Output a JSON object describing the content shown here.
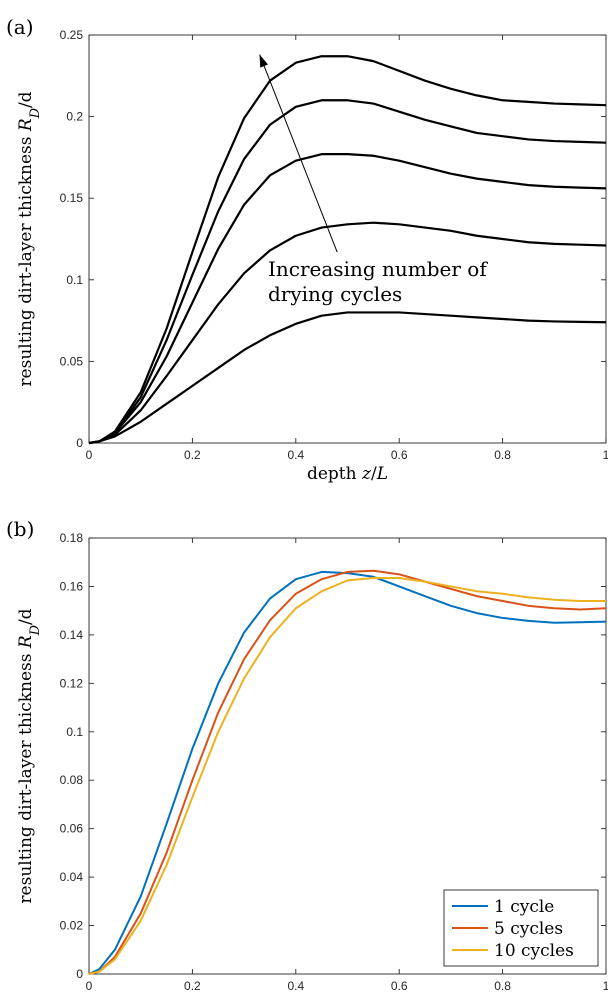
{
  "chart_data": [
    {
      "type": "line",
      "panel_label": "(a)",
      "xlabel": "depth z/L",
      "ylabel": "resulting dirt-layer thickness R_D/d",
      "xlim": [
        0,
        1
      ],
      "ylim": [
        0,
        0.25
      ],
      "xticks": [
        "0",
        "0.2",
        "0.4",
        "0.6",
        "0.8",
        "1"
      ],
      "yticks": [
        "0",
        "0.05",
        "0.1",
        "0.15",
        "0.2",
        "0.25"
      ],
      "grid": false,
      "annotation": {
        "lines": [
          "Increasing number of",
          "drying cycles"
        ],
        "arrow_from": [
          0.48,
          0.117
        ],
        "arrow_to": [
          0.33,
          0.238
        ]
      },
      "x": [
        0,
        0.02,
        0.05,
        0.1,
        0.15,
        0.2,
        0.25,
        0.3,
        0.35,
        0.4,
        0.45,
        0.5,
        0.55,
        0.6,
        0.65,
        0.7,
        0.75,
        0.8,
        0.85,
        0.9,
        0.95,
        1.0
      ],
      "series": [
        {
          "color": "#000000",
          "values": [
            0,
            0.001,
            0.004,
            0.013,
            0.024,
            0.035,
            0.046,
            0.057,
            0.066,
            0.073,
            0.078,
            0.08,
            0.08,
            0.08,
            0.079,
            0.078,
            0.077,
            0.076,
            0.075,
            0.0745,
            0.0742,
            0.074
          ]
        },
        {
          "color": "#000000",
          "values": [
            0,
            0.001,
            0.005,
            0.02,
            0.041,
            0.063,
            0.085,
            0.104,
            0.118,
            0.127,
            0.132,
            0.134,
            0.135,
            0.134,
            0.132,
            0.13,
            0.127,
            0.125,
            0.123,
            0.122,
            0.1215,
            0.121
          ]
        },
        {
          "color": "#000000",
          "values": [
            0,
            0.001,
            0.006,
            0.025,
            0.053,
            0.086,
            0.119,
            0.146,
            0.164,
            0.173,
            0.177,
            0.177,
            0.176,
            0.173,
            0.169,
            0.165,
            0.162,
            0.16,
            0.158,
            0.157,
            0.1565,
            0.156
          ]
        },
        {
          "color": "#000000",
          "values": [
            0,
            0.001,
            0.006,
            0.028,
            0.063,
            0.103,
            0.142,
            0.174,
            0.195,
            0.206,
            0.21,
            0.21,
            0.208,
            0.203,
            0.198,
            0.194,
            0.19,
            0.188,
            0.186,
            0.185,
            0.1845,
            0.184
          ]
        },
        {
          "color": "#000000",
          "values": [
            0,
            0.001,
            0.007,
            0.031,
            0.07,
            0.117,
            0.163,
            0.199,
            0.222,
            0.233,
            0.237,
            0.237,
            0.234,
            0.228,
            0.222,
            0.217,
            0.213,
            0.21,
            0.209,
            0.208,
            0.2075,
            0.207
          ]
        }
      ]
    },
    {
      "type": "line",
      "panel_label": "(b)",
      "xlabel": "depth z/L",
      "ylabel": "resulting dirt-layer thickness R_D/d",
      "xlim": [
        0,
        1
      ],
      "ylim": [
        0,
        0.18
      ],
      "xticks": [
        "0",
        "0.2",
        "0.4",
        "0.6",
        "0.8",
        "1"
      ],
      "yticks": [
        "0",
        "0.02",
        "0.04",
        "0.06",
        "0.08",
        "0.1",
        "0.12",
        "0.14",
        "0.16",
        "0.18"
      ],
      "grid": false,
      "legend": "bottom-right",
      "x": [
        0,
        0.02,
        0.05,
        0.1,
        0.15,
        0.2,
        0.25,
        0.3,
        0.35,
        0.4,
        0.45,
        0.5,
        0.55,
        0.6,
        0.65,
        0.7,
        0.75,
        0.8,
        0.85,
        0.9,
        0.95,
        1.0
      ],
      "series": [
        {
          "name": "1 cycle",
          "color": "#0072BD",
          "values": [
            0,
            0.002,
            0.01,
            0.032,
            0.062,
            0.093,
            0.12,
            0.141,
            0.155,
            0.163,
            0.166,
            0.1655,
            0.164,
            0.16,
            0.156,
            0.152,
            0.149,
            0.147,
            0.1458,
            0.145,
            0.1452,
            0.1455
          ]
        },
        {
          "name": "5 cycles",
          "color": "#D95319",
          "values": [
            0,
            0.001,
            0.007,
            0.025,
            0.05,
            0.08,
            0.108,
            0.13,
            0.146,
            0.157,
            0.163,
            0.166,
            0.1665,
            0.165,
            0.162,
            0.159,
            0.156,
            0.154,
            0.152,
            0.151,
            0.1505,
            0.151
          ]
        },
        {
          "name": "10 cycles",
          "color": "#EDB120",
          "values": [
            0,
            0.001,
            0.006,
            0.022,
            0.045,
            0.073,
            0.1,
            0.122,
            0.139,
            0.151,
            0.158,
            0.1625,
            0.1635,
            0.1635,
            0.162,
            0.16,
            0.158,
            0.157,
            0.1555,
            0.1545,
            0.154,
            0.154
          ]
        }
      ]
    }
  ]
}
